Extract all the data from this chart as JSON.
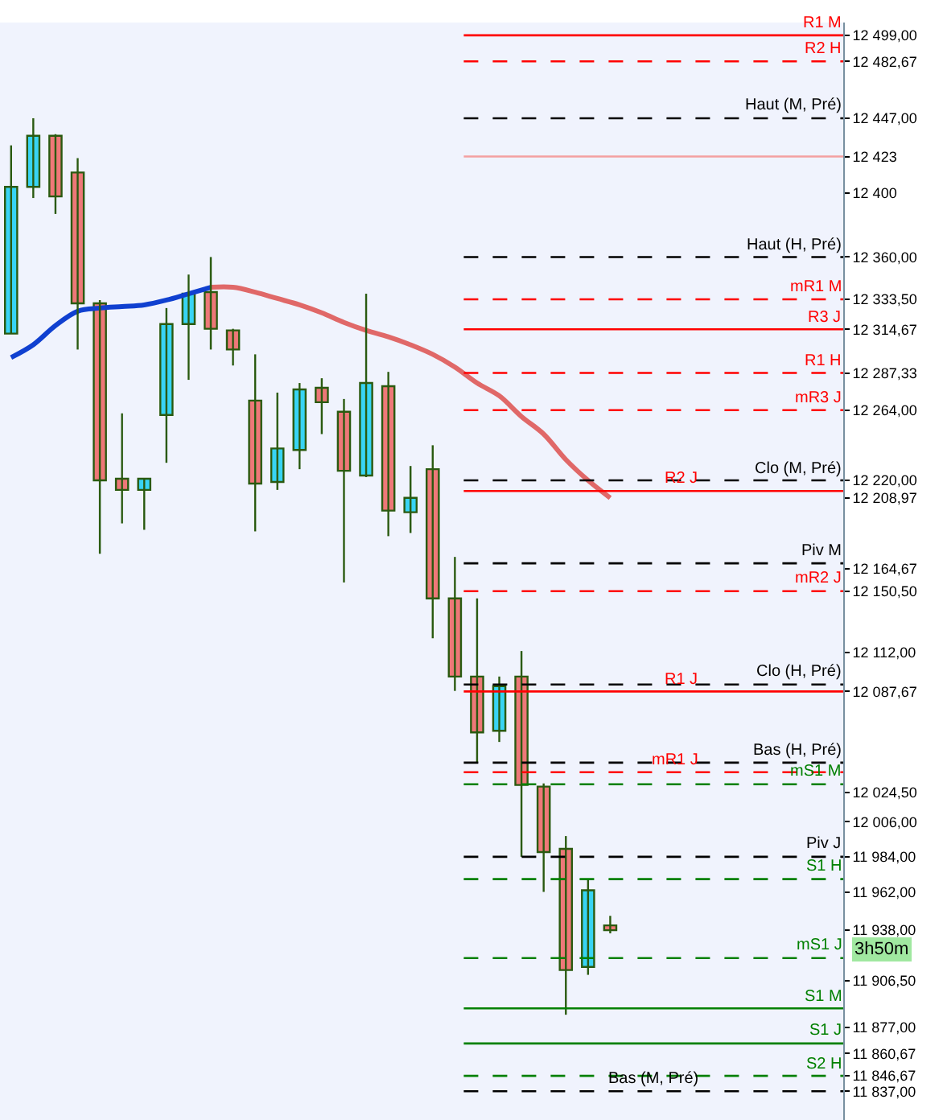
{
  "chart_data": {
    "type": "candlestick",
    "categories": [
      null,
      null,
      null,
      null,
      null,
      null,
      null,
      null,
      null,
      null,
      null,
      null,
      null,
      null,
      null,
      null,
      null,
      null,
      null,
      null,
      null,
      null,
      null,
      null,
      null,
      null,
      null,
      null,
      null,
      null,
      null,
      null,
      null,
      null,
      null,
      null,
      null,
      null
    ],
    "ohlc": [
      [
        12312,
        12430,
        12312,
        12404
      ],
      [
        12404,
        12447,
        12397,
        12436
      ],
      [
        12436,
        12437,
        12387,
        12398
      ],
      [
        12413,
        12422,
        12302,
        12331
      ],
      [
        12331,
        12333,
        12174,
        12220
      ],
      [
        12221,
        12262,
        12193,
        12214
      ],
      [
        12214,
        12221,
        12189,
        12221
      ],
      [
        12261,
        12328,
        12231,
        12318
      ],
      [
        12318,
        12349,
        12283,
        12337
      ],
      [
        12338,
        12360,
        12302,
        12315
      ],
      [
        12314,
        12315,
        12292,
        12302
      ],
      [
        12270,
        12299,
        12188,
        12218
      ],
      [
        12219,
        12275,
        12214,
        12240
      ],
      [
        12239,
        12281,
        12227,
        12277
      ],
      [
        12278,
        12284,
        12249,
        12269
      ],
      [
        12263,
        12271,
        12156,
        12226
      ],
      [
        12223,
        12337,
        12222,
        12281
      ],
      [
        12279,
        12288,
        12185,
        12201
      ],
      [
        12200,
        12229,
        12187,
        12209
      ],
      [
        12227,
        12242,
        12121,
        12146
      ],
      [
        12146,
        12172,
        12088,
        12097
      ],
      [
        12097,
        12146,
        12043,
        12062
      ],
      [
        12063,
        12097,
        12056,
        12091
      ],
      [
        12097,
        12113,
        11984,
        12029
      ],
      [
        12028,
        12030,
        11962,
        11987
      ],
      [
        11989,
        11997,
        11885,
        11913
      ],
      [
        11915,
        11970,
        11910,
        11963
      ],
      [
        11941,
        11947,
        11936,
        11938
      ],
      null,
      null,
      null,
      null,
      null,
      null,
      null,
      null,
      null,
      null
    ],
    "series": [
      {
        "type": "line",
        "color": "#1040d0",
        "values": [
          12297,
          12305,
          12317,
          12326,
          12328,
          12329,
          12330,
          12333,
          12337,
          12341,
          null,
          null,
          null,
          null,
          null,
          null,
          null,
          null,
          null,
          null,
          null,
          null,
          null,
          null,
          null,
          null,
          null,
          null,
          null,
          null,
          null,
          null,
          null,
          null,
          null,
          null,
          null,
          null
        ]
      },
      {
        "type": "line",
        "color": "#e06868",
        "values": [
          null,
          null,
          null,
          null,
          null,
          null,
          null,
          null,
          null,
          12341,
          12341,
          12338,
          12334,
          12330,
          12325,
          12319,
          12314,
          12310,
          12305,
          12299,
          12291,
          12281,
          12273,
          12260,
          12249,
          12233,
          12220,
          12209,
          null,
          null,
          null,
          null,
          null,
          null,
          null,
          null,
          null,
          null
        ]
      }
    ],
    "ylim": [
      11819,
      12507
    ],
    "yticks": [
      {
        "value": 12499,
        "label": "12 499,00"
      },
      {
        "value": 12482.67,
        "label": "12 482,67"
      },
      {
        "value": 12447,
        "label": "12 447,00"
      },
      {
        "value": 12423,
        "label": "12 423"
      },
      {
        "value": 12400,
        "label": "12 400"
      },
      {
        "value": 12360,
        "label": "12 360,00"
      },
      {
        "value": 12333.5,
        "label": "12 333,50"
      },
      {
        "value": 12314.67,
        "label": "12 314,67"
      },
      {
        "value": 12287.33,
        "label": "12 287,33"
      },
      {
        "value": 12264,
        "label": "12 264,00"
      },
      {
        "value": 12220,
        "label": "12 220,00"
      },
      {
        "value": 12208.97,
        "label": "12 208,97"
      },
      {
        "value": 12164.67,
        "label": "12 164,67"
      },
      {
        "value": 12150.5,
        "label": "12 150,50"
      },
      {
        "value": 12112,
        "label": "12 112,00"
      },
      {
        "value": 12087.67,
        "label": "12 087,67"
      },
      {
        "value": 12024.5,
        "label": "12 024,50"
      },
      {
        "value": 12006,
        "label": "12 006,00"
      },
      {
        "value": 11984,
        "label": "11 984,00"
      },
      {
        "value": 11962,
        "label": "11 962,00"
      },
      {
        "value": 11938,
        "label": "11 938,00"
      },
      {
        "value": 11906.5,
        "label": "11 906,50"
      },
      {
        "value": 11877,
        "label": "11 877,00"
      },
      {
        "value": 11860.67,
        "label": "11 860,67"
      },
      {
        "value": 11846.67,
        "label": "11 846,67"
      },
      {
        "value": 11837,
        "label": "11 837,00"
      }
    ],
    "ref_lines": [
      {
        "axis": "y",
        "value": 12499,
        "label": "R1 M",
        "color": "#ff0000",
        "line_style": "solid"
      },
      {
        "axis": "y",
        "value": 12482.67,
        "label": "R2 H",
        "color": "#ff0000",
        "line_style": "dashed"
      },
      {
        "axis": "y",
        "value": 12447,
        "label": "Haut (M, Pré)",
        "color": "#000000",
        "line_style": "dashed"
      },
      {
        "axis": "y",
        "value": 12423,
        "color": "#f4a0a0",
        "line_style": "solid"
      },
      {
        "axis": "y",
        "value": 12360,
        "label": "Haut (H, Pré)",
        "color": "#000000",
        "line_style": "dashed"
      },
      {
        "axis": "y",
        "value": 12333.5,
        "label": "mR1 M",
        "color": "#ff0000",
        "line_style": "dashed"
      },
      {
        "axis": "y",
        "value": 12314.67,
        "label": "R3 J",
        "color": "#ff0000",
        "line_style": "solid"
      },
      {
        "axis": "y",
        "value": 12287.33,
        "label": "R1 H",
        "color": "#ff0000",
        "line_style": "dashed"
      },
      {
        "axis": "y",
        "value": 12264,
        "label": "mR3 J",
        "color": "#ff0000",
        "line_style": "dashed"
      },
      {
        "axis": "y",
        "value": 12220,
        "label": "Clo (M, Pré)",
        "color": "#000000",
        "line_style": "dashed"
      },
      {
        "axis": "y",
        "value": 12213.33,
        "label": "R2 J",
        "color": "#ff0000",
        "line_style": "solid"
      },
      {
        "axis": "y",
        "value": 12168,
        "label": "Piv M",
        "color": "#000000",
        "line_style": "dashed"
      },
      {
        "axis": "y",
        "value": 12150.5,
        "label": "mR2 J",
        "color": "#ff0000",
        "line_style": "dashed"
      },
      {
        "axis": "y",
        "value": 12092,
        "label": "Clo (H, Pré)",
        "color": "#000000",
        "line_style": "dashed"
      },
      {
        "axis": "y",
        "value": 12087.67,
        "label": "R1 J",
        "color": "#ff0000",
        "line_style": "solid"
      },
      {
        "axis": "y",
        "value": 12043,
        "label": "Bas (H, Pré)",
        "color": "#000000",
        "line_style": "dashed"
      },
      {
        "axis": "y",
        "value": 12037,
        "label": "mR1 J",
        "color": "#ff0000",
        "line_style": "dashed"
      },
      {
        "axis": "y",
        "value": 12029.5,
        "label": "mS1 M",
        "color": "#008000",
        "line_style": "dashed"
      },
      {
        "axis": "y",
        "value": 11984,
        "label": "Piv J",
        "color": "#000000",
        "line_style": "dashed"
      },
      {
        "axis": "y",
        "value": 11970,
        "label": "S1 H",
        "color": "#008000",
        "line_style": "dashed"
      },
      {
        "axis": "y",
        "value": 11920.5,
        "label": "mS1 J",
        "color": "#008000",
        "line_style": "dashed"
      },
      {
        "axis": "y",
        "value": 11889,
        "label": "S1 M",
        "color": "#008000",
        "line_style": "solid"
      },
      {
        "axis": "y",
        "value": 11867,
        "label": "S1 J",
        "color": "#008000",
        "line_style": "solid"
      },
      {
        "axis": "y",
        "value": 11846.67,
        "label": "S2 H",
        "color": "#008000",
        "line_style": "dashed"
      },
      {
        "axis": "y",
        "value": 11837,
        "label": "Bas (M, Pré)",
        "color": "#000000",
        "line_style": "dashed"
      }
    ],
    "annotations": [
      "3h50m"
    ],
    "tick_labels": "y",
    "grid": false
  }
}
